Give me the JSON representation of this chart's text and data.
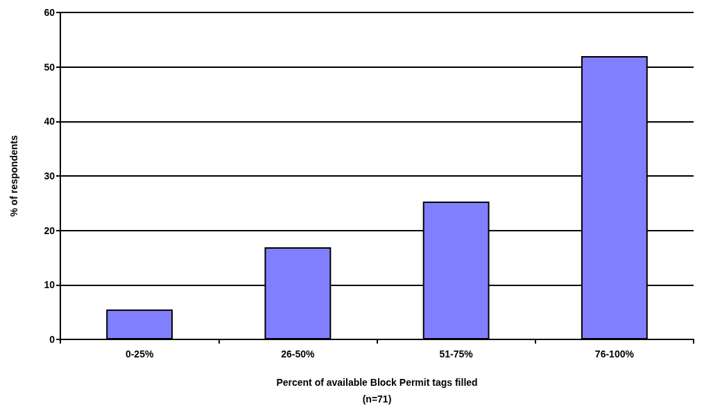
{
  "chart_data": {
    "type": "bar",
    "categories": [
      "0-25%",
      "26-50%",
      "51-75%",
      "76-100%"
    ],
    "values": [
      5.5,
      16.9,
      25.3,
      52
    ],
    "color": "#8080ff",
    "xlabel": "Percent of available Block Permit tags filled\n(n=71)",
    "ylabel": "% of respondents",
    "ylim": [
      0,
      60
    ],
    "yticks": [
      0,
      10,
      20,
      30,
      40,
      50,
      60
    ],
    "grid": "y"
  }
}
